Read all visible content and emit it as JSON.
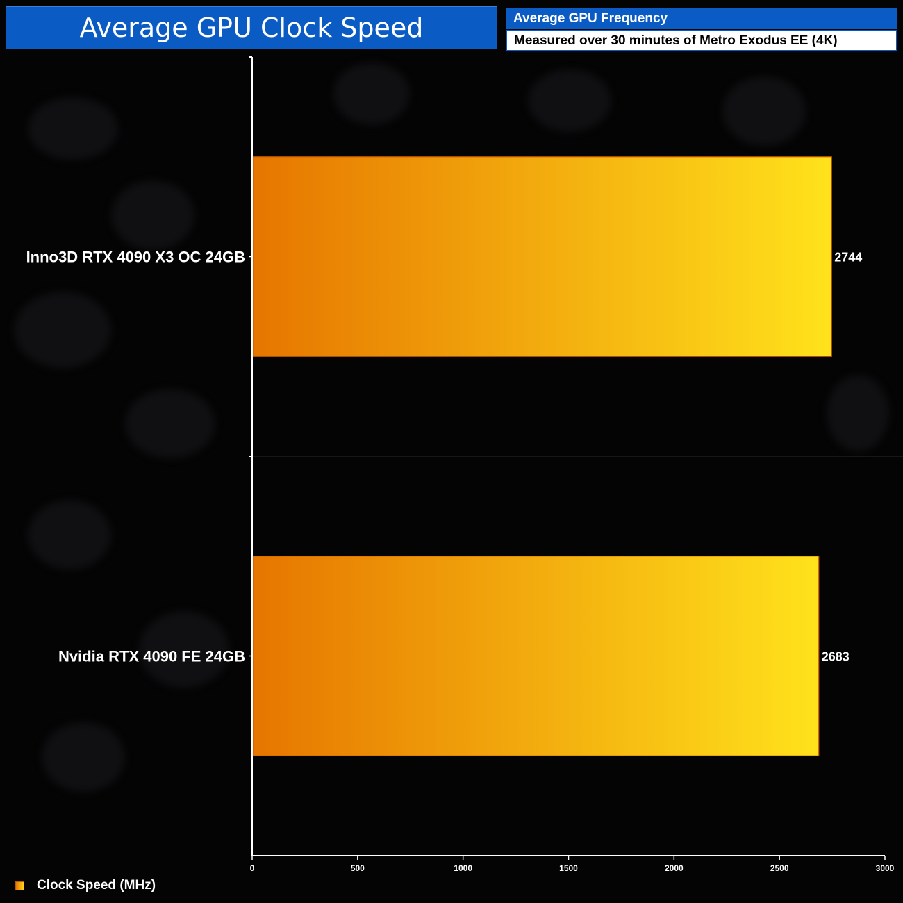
{
  "header": {
    "title": "Average GPU Clock Speed",
    "subtitle": "Average GPU Frequency",
    "description": "Measured over 30 minutes of Metro Exodus EE (4K)"
  },
  "colors": {
    "accent_blue": "#0a5bc4",
    "bar_start": "#e67600",
    "bar_end": "#ffe21c",
    "bar_border": "#c85a00",
    "text": "#ffffff"
  },
  "legend": {
    "label": "Clock Speed (MHz)",
    "placement": "bottom-left"
  },
  "chart_data": {
    "type": "bar",
    "orientation": "horizontal",
    "categories": [
      "Inno3D RTX 4090 X3 OC 24GB",
      "Nvidia RTX 4090 FE 24GB"
    ],
    "series": [
      {
        "name": "Clock Speed (MHz)",
        "values": [
          2744,
          2683
        ]
      }
    ],
    "xlim": [
      0,
      3000
    ],
    "x_ticks": [
      0,
      500,
      1000,
      1500,
      2000,
      2500,
      3000
    ],
    "grid": false,
    "data_labels": true
  }
}
